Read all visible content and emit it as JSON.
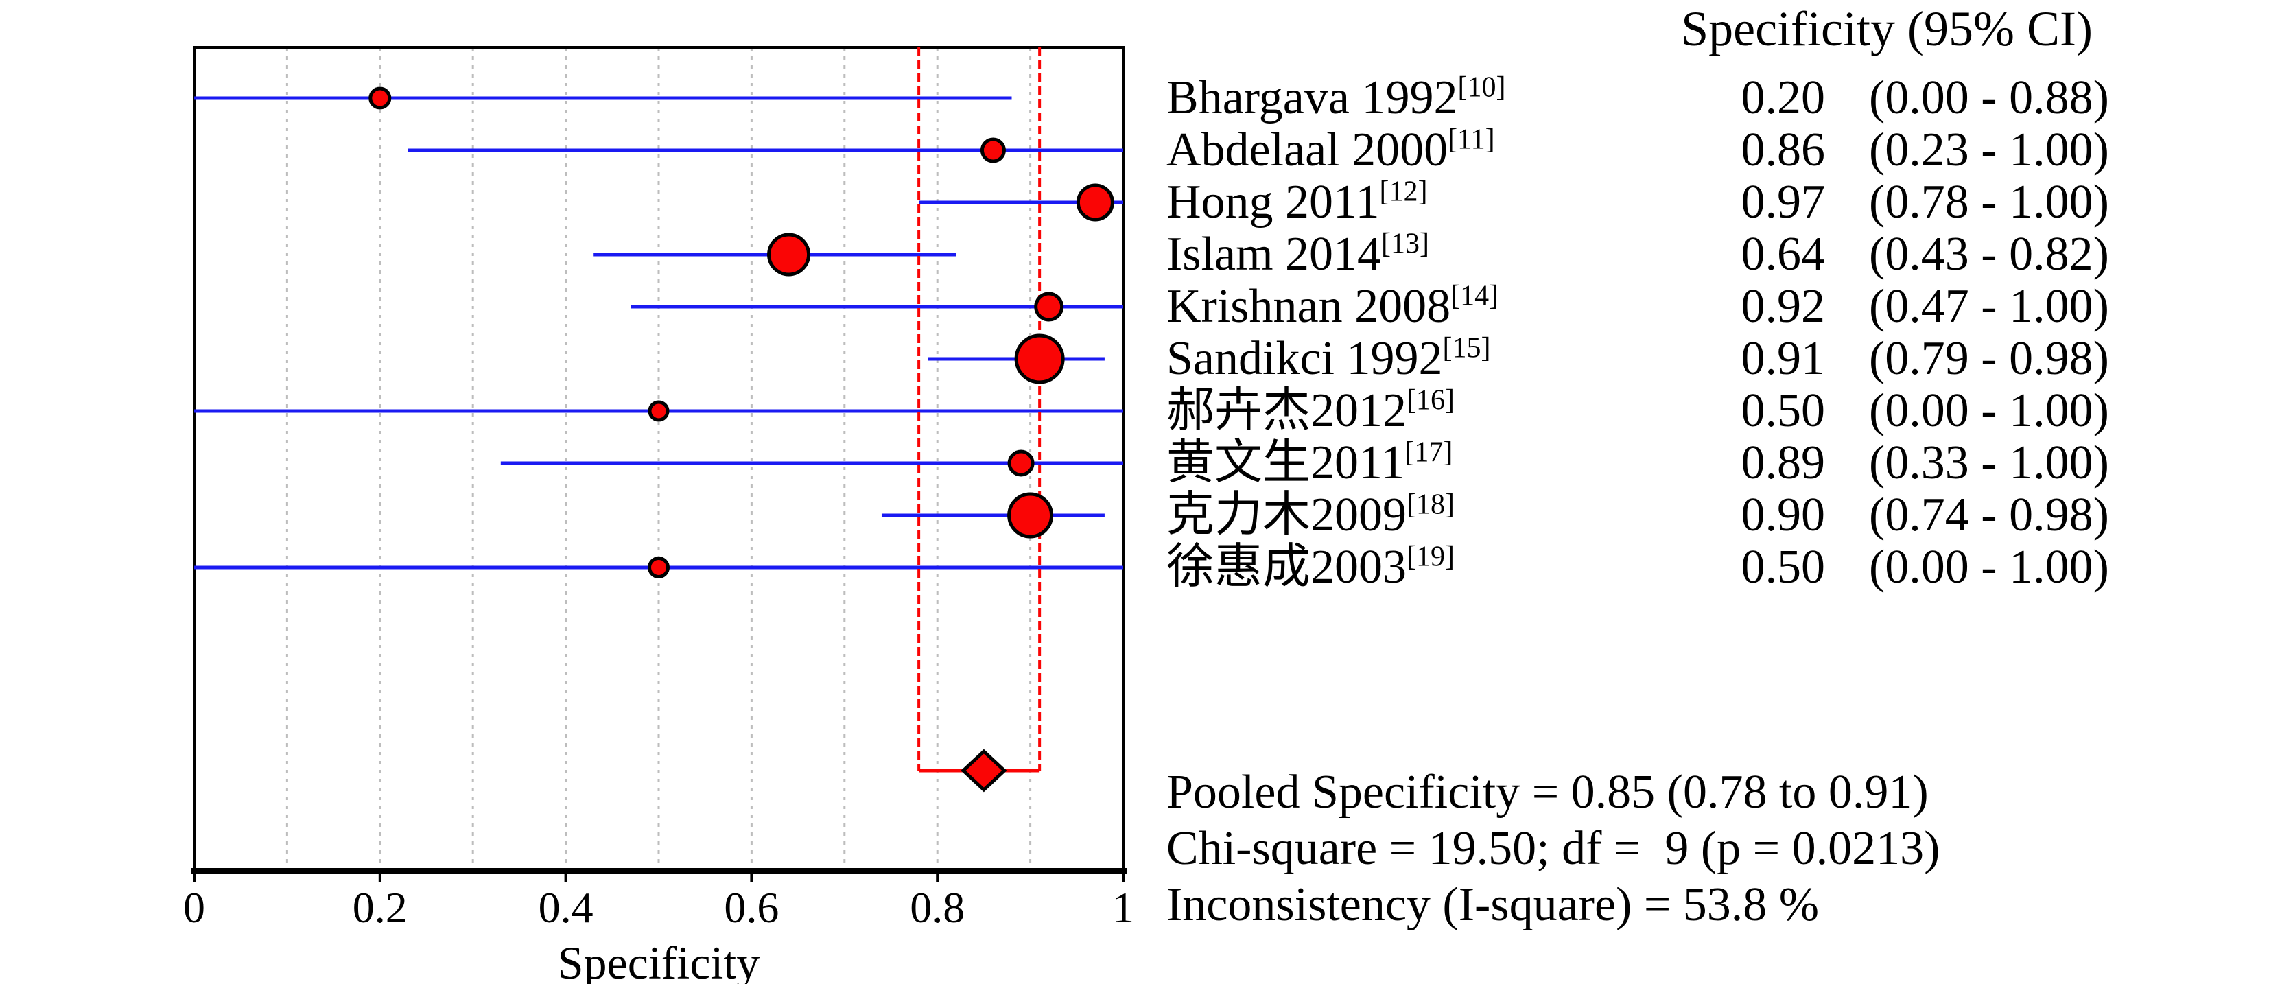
{
  "chart_data": {
    "type": "forest",
    "column_header": "Specificity (95% CI)",
    "xlabel": "Specificity",
    "xlim": [
      0,
      1
    ],
    "x_ticks": [
      0,
      0.2,
      0.4,
      0.6,
      0.8,
      1
    ],
    "x_tick_labels": [
      "0",
      "0.2",
      "0.4",
      "0.6",
      "0.8",
      "1"
    ],
    "grid": {
      "step": 0.1,
      "style": "dashed",
      "on": true
    },
    "studies": [
      {
        "label": "Bhargava 1992",
        "ref": "[10]",
        "est": 0.2,
        "lo": 0.0,
        "hi": 0.88,
        "est_text": "0.20",
        "ci_text": "(0.00 - 0.88)",
        "marker_d": 33
      },
      {
        "label": "Abdelaal 2000",
        "ref": "[11]",
        "est": 0.86,
        "lo": 0.23,
        "hi": 1.0,
        "est_text": "0.86",
        "ci_text": "(0.23 - 1.00)",
        "marker_d": 37
      },
      {
        "label": "Hong 2011",
        "ref": "[12]",
        "est": 0.97,
        "lo": 0.78,
        "hi": 1.0,
        "est_text": "0.97",
        "ci_text": "(0.78 - 1.00)",
        "marker_d": 55
      },
      {
        "label": "Islam 2014",
        "ref": "[13]",
        "est": 0.64,
        "lo": 0.43,
        "hi": 0.82,
        "est_text": "0.64",
        "ci_text": "(0.43 - 0.82)",
        "marker_d": 63
      },
      {
        "label": "Krishnan 2008",
        "ref": "[14]",
        "est": 0.92,
        "lo": 0.47,
        "hi": 1.0,
        "est_text": "0.92",
        "ci_text": "(0.47 - 1.00)",
        "marker_d": 43
      },
      {
        "label": "Sandikci 1992",
        "ref": "[15]",
        "est": 0.91,
        "lo": 0.79,
        "hi": 0.98,
        "est_text": "0.91",
        "ci_text": "(0.79 - 0.98)",
        "marker_d": 73
      },
      {
        "label": "郝卉杰2012",
        "ref": "[16]",
        "est": 0.5,
        "lo": 0.0,
        "hi": 1.0,
        "est_text": "0.50",
        "ci_text": "(0.00 - 1.00)",
        "marker_d": 31
      },
      {
        "label": "黄文生2011",
        "ref": "[17]",
        "est": 0.89,
        "lo": 0.33,
        "hi": 1.0,
        "est_text": "0.89",
        "ci_text": "(0.33 - 1.00)",
        "marker_d": 39
      },
      {
        "label": "克力木2009",
        "ref": "[18]",
        "est": 0.9,
        "lo": 0.74,
        "hi": 0.98,
        "est_text": "0.90",
        "ci_text": "(0.74 - 0.98)",
        "marker_d": 67
      },
      {
        "label": "徐惠成2003",
        "ref": "[19]",
        "est": 0.5,
        "lo": 0.0,
        "hi": 1.0,
        "est_text": "0.50",
        "ci_text": "(0.00 - 1.00)",
        "marker_d": 32
      }
    ],
    "pooled": {
      "est": 0.85,
      "lo": 0.78,
      "hi": 0.91
    },
    "stats_lines": [
      "Pooled Specificity = 0.85 (0.78 to 0.91)",
      "Chi-square = 19.50; df =  9 (p = 0.0213)",
      "Inconsistency (I-square) = 53.8 %"
    ],
    "colors": {
      "ci_line": "#1a1af2",
      "marker_fill": "#fa0505",
      "marker_stroke": "#000000",
      "pooled_line": "#fa0505",
      "grid": "#bdbdbd",
      "frame": "#000000",
      "text": "#000000"
    }
  }
}
